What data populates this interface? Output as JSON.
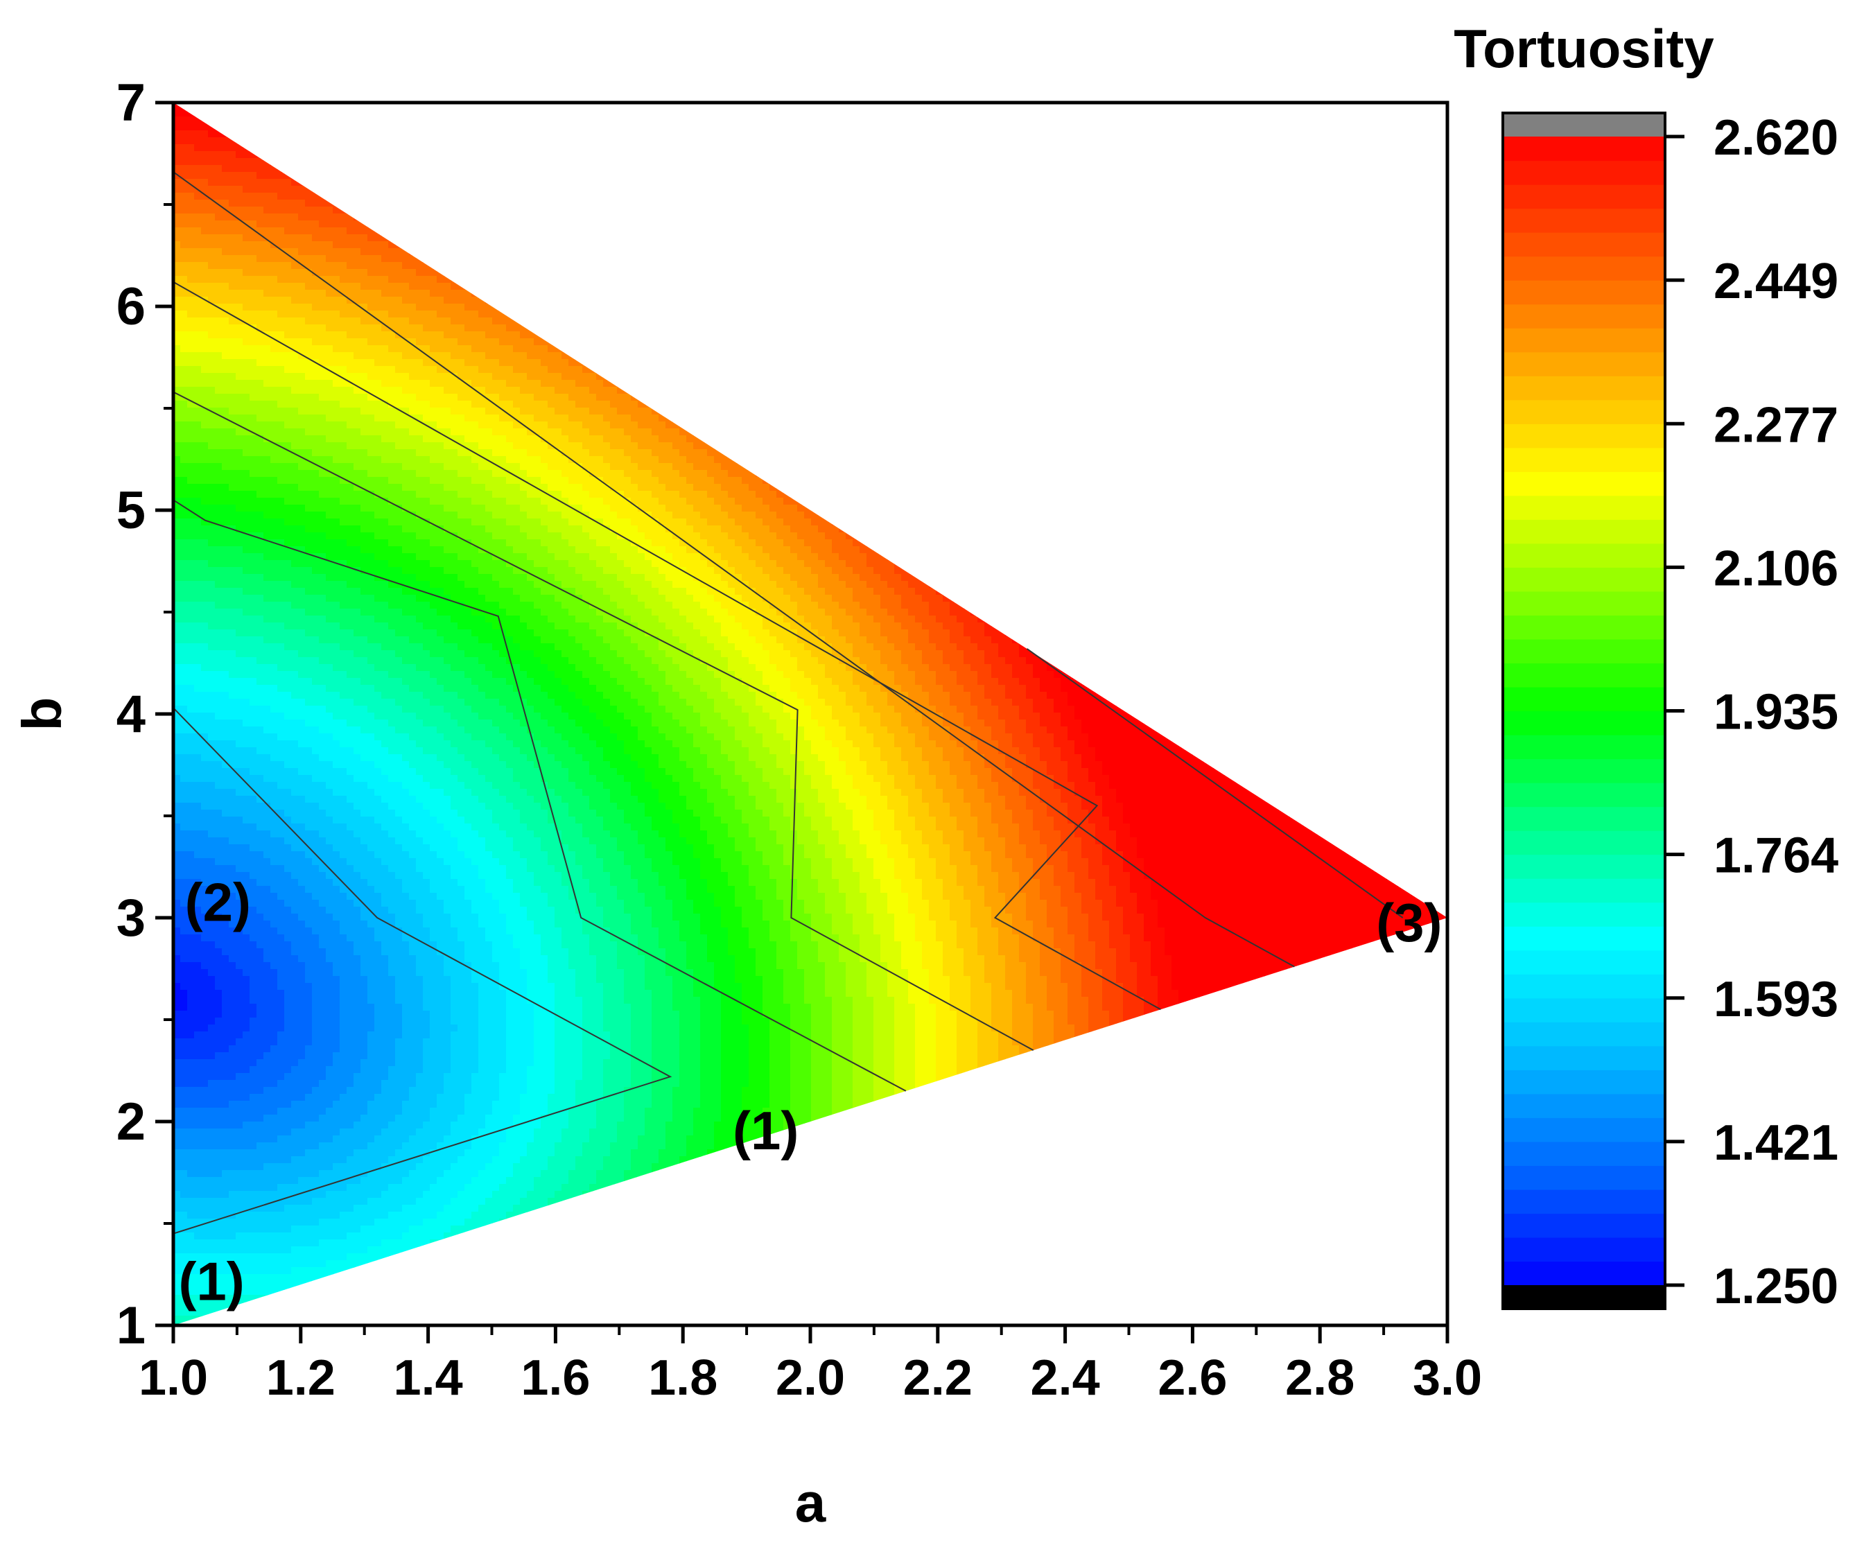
{
  "chart_data": {
    "type": "heatmap",
    "subtype": "contour",
    "xlabel": "a",
    "ylabel": "b",
    "colorbar_title": "Tortuosity",
    "xlim": [
      1.0,
      3.0
    ],
    "ylim": [
      1,
      7
    ],
    "x_ticks": [
      "1.0",
      "1.2",
      "1.4",
      "1.6",
      "1.8",
      "2.0",
      "2.2",
      "2.4",
      "2.6",
      "2.8",
      "3.0"
    ],
    "y_ticks": [
      "1",
      "2",
      "3",
      "4",
      "5",
      "6",
      "7"
    ],
    "colorbar_ticks": [
      "1.250",
      "1.421",
      "1.593",
      "1.764",
      "1.935",
      "2.106",
      "2.277",
      "2.449",
      "2.620"
    ],
    "colorbar_range": [
      1.25,
      2.62
    ],
    "colormap": [
      "#0000ff",
      "#0066ff",
      "#00bbff",
      "#00ffff",
      "#00ff88",
      "#00ff00",
      "#88ff00",
      "#ffff00",
      "#ffaa00",
      "#ff5500",
      "#ff0000"
    ],
    "colorbar_under_color": "#000000",
    "colorbar_over_color": "#808080",
    "domain_vertices": [
      [
        1.0,
        1.0
      ],
      [
        1.0,
        7.0
      ],
      [
        3.0,
        3.0
      ]
    ],
    "minimum_point": [
      1.0,
      2.6
    ],
    "contour_lines": [
      {
        "points": [
          [
            1.0,
            1.45
          ],
          [
            1.78,
            2.22
          ],
          [
            1.32,
            3.0
          ],
          [
            1.0,
            4.03
          ]
        ]
      },
      {
        "points": [
          [
            2.15,
            2.15
          ],
          [
            1.64,
            3.0
          ],
          [
            1.51,
            4.48
          ],
          [
            1.05,
            4.95
          ],
          [
            1.0,
            5.05
          ]
        ]
      },
      {
        "points": [
          [
            2.35,
            2.35
          ],
          [
            1.97,
            3.0
          ],
          [
            1.98,
            4.02
          ],
          [
            1.0,
            5.58
          ]
        ]
      },
      {
        "points": [
          [
            2.55,
            2.55
          ],
          [
            2.29,
            3.0
          ],
          [
            2.45,
            3.55
          ],
          [
            1.0,
            6.12
          ]
        ]
      },
      {
        "points": [
          [
            2.76,
            2.76
          ],
          [
            2.62,
            3.0
          ],
          [
            1.0,
            6.66
          ]
        ]
      },
      {
        "points": [
          [
            2.93,
            3.0
          ],
          [
            2.34,
            4.32
          ]
        ]
      }
    ],
    "annotations": [
      {
        "text": "(1)",
        "x": 1.06,
        "y": 1.22
      },
      {
        "text": "(2)",
        "x": 1.07,
        "y": 3.08
      },
      {
        "text": "(1)",
        "x": 1.93,
        "y": 1.96
      },
      {
        "text": "(3)",
        "x": 2.94,
        "y": 2.98
      }
    ],
    "grid": false
  }
}
